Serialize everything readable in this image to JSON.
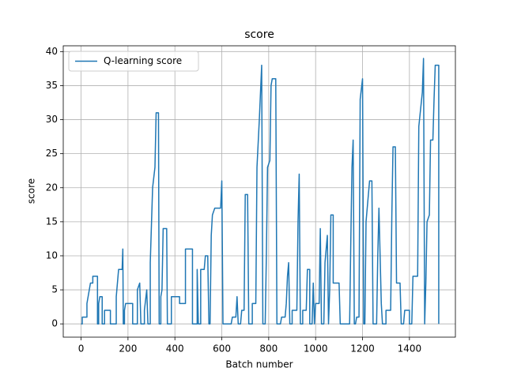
{
  "chart_data": {
    "type": "line",
    "title": "score",
    "x_label": "Batch number",
    "y_label": "score",
    "x": [
      0,
      5,
      5,
      25,
      25,
      35,
      40,
      50,
      50,
      70,
      70,
      75,
      75,
      80,
      90,
      90,
      100,
      100,
      125,
      125,
      150,
      150,
      160,
      175,
      178,
      180,
      185,
      185,
      190,
      220,
      220,
      240,
      240,
      250,
      255,
      270,
      270,
      280,
      285,
      295,
      295,
      305,
      315,
      320,
      330,
      333,
      340,
      340,
      345,
      350,
      365,
      368,
      385,
      385,
      420,
      420,
      445,
      445,
      475,
      475,
      495,
      495,
      500,
      510,
      510,
      525,
      530,
      540,
      545,
      550,
      555,
      560,
      570,
      595,
      600,
      605,
      640,
      645,
      660,
      665,
      670,
      680,
      685,
      695,
      700,
      710,
      715,
      730,
      730,
      745,
      750,
      760,
      770,
      775,
      785,
      790,
      795,
      805,
      810,
      815,
      830,
      835,
      850,
      855,
      870,
      875,
      880,
      885,
      890,
      900,
      900,
      920,
      925,
      930,
      935,
      945,
      945,
      960,
      965,
      975,
      975,
      985,
      990,
      995,
      1000,
      1015,
      1020,
      1025,
      1035,
      1040,
      1050,
      1055,
      1060,
      1065,
      1075,
      1075,
      1100,
      1105,
      1145,
      1150,
      1155,
      1160,
      1165,
      1170,
      1175,
      1185,
      1190,
      1200,
      1205,
      1210,
      1215,
      1230,
      1240,
      1245,
      1260,
      1265,
      1270,
      1280,
      1285,
      1300,
      1300,
      1320,
      1325,
      1330,
      1340,
      1345,
      1360,
      1365,
      1375,
      1380,
      1400,
      1400,
      1410,
      1415,
      1435,
      1440,
      1455,
      1460,
      1465,
      1470,
      1475,
      1485,
      1490,
      1500,
      1505,
      1510,
      1525,
      1525
    ],
    "series": [
      {
        "name": "Q-learning score",
        "color": "#1f77b4",
        "values": [
          0,
          0,
          1,
          1,
          3,
          5,
          6,
          6,
          7,
          7,
          0,
          0,
          3,
          4,
          4,
          0,
          0,
          2,
          2,
          0,
          0,
          4,
          8,
          8,
          11,
          0,
          0,
          2,
          3,
          3,
          0,
          0,
          5,
          6,
          0,
          0,
          2,
          5,
          0,
          0,
          9,
          20,
          23,
          31,
          31,
          0,
          0,
          4,
          5,
          14,
          14,
          0,
          0,
          4,
          4,
          3,
          3,
          11,
          11,
          0,
          0,
          8,
          0,
          0,
          8,
          8,
          10,
          10,
          0,
          0,
          13,
          16,
          17,
          17,
          21,
          0,
          0,
          1,
          1,
          4,
          0,
          0,
          2,
          2,
          19,
          19,
          0,
          0,
          3,
          3,
          23,
          30,
          38,
          0,
          0,
          10,
          23,
          24,
          35,
          36,
          36,
          0,
          0,
          1,
          1,
          3,
          7,
          9,
          0,
          0,
          2,
          2,
          15,
          22,
          0,
          0,
          2,
          2,
          8,
          8,
          0,
          0,
          6,
          0,
          3,
          3,
          14,
          0,
          0,
          9,
          13,
          0,
          5,
          16,
          16,
          6,
          6,
          0,
          0,
          12,
          23,
          27,
          0,
          0,
          1,
          1,
          33,
          36,
          0,
          0,
          15,
          21,
          21,
          0,
          0,
          10,
          17,
          3,
          0,
          0,
          2,
          2,
          16,
          26,
          26,
          6,
          6,
          0,
          0,
          2,
          2,
          0,
          0,
          7,
          7,
          29,
          34,
          39,
          0,
          6,
          15,
          16,
          27,
          27,
          33,
          38,
          38,
          0
        ]
      }
    ],
    "xlim": [
      -76,
      1596
    ],
    "ylim": [
      -1.95,
      40.85
    ],
    "xticks": [
      0,
      200,
      400,
      600,
      800,
      1000,
      1200,
      1400
    ],
    "yticks": [
      0,
      5,
      10,
      15,
      20,
      25,
      30,
      35,
      40
    ],
    "grid": true,
    "legend": "upper left"
  }
}
